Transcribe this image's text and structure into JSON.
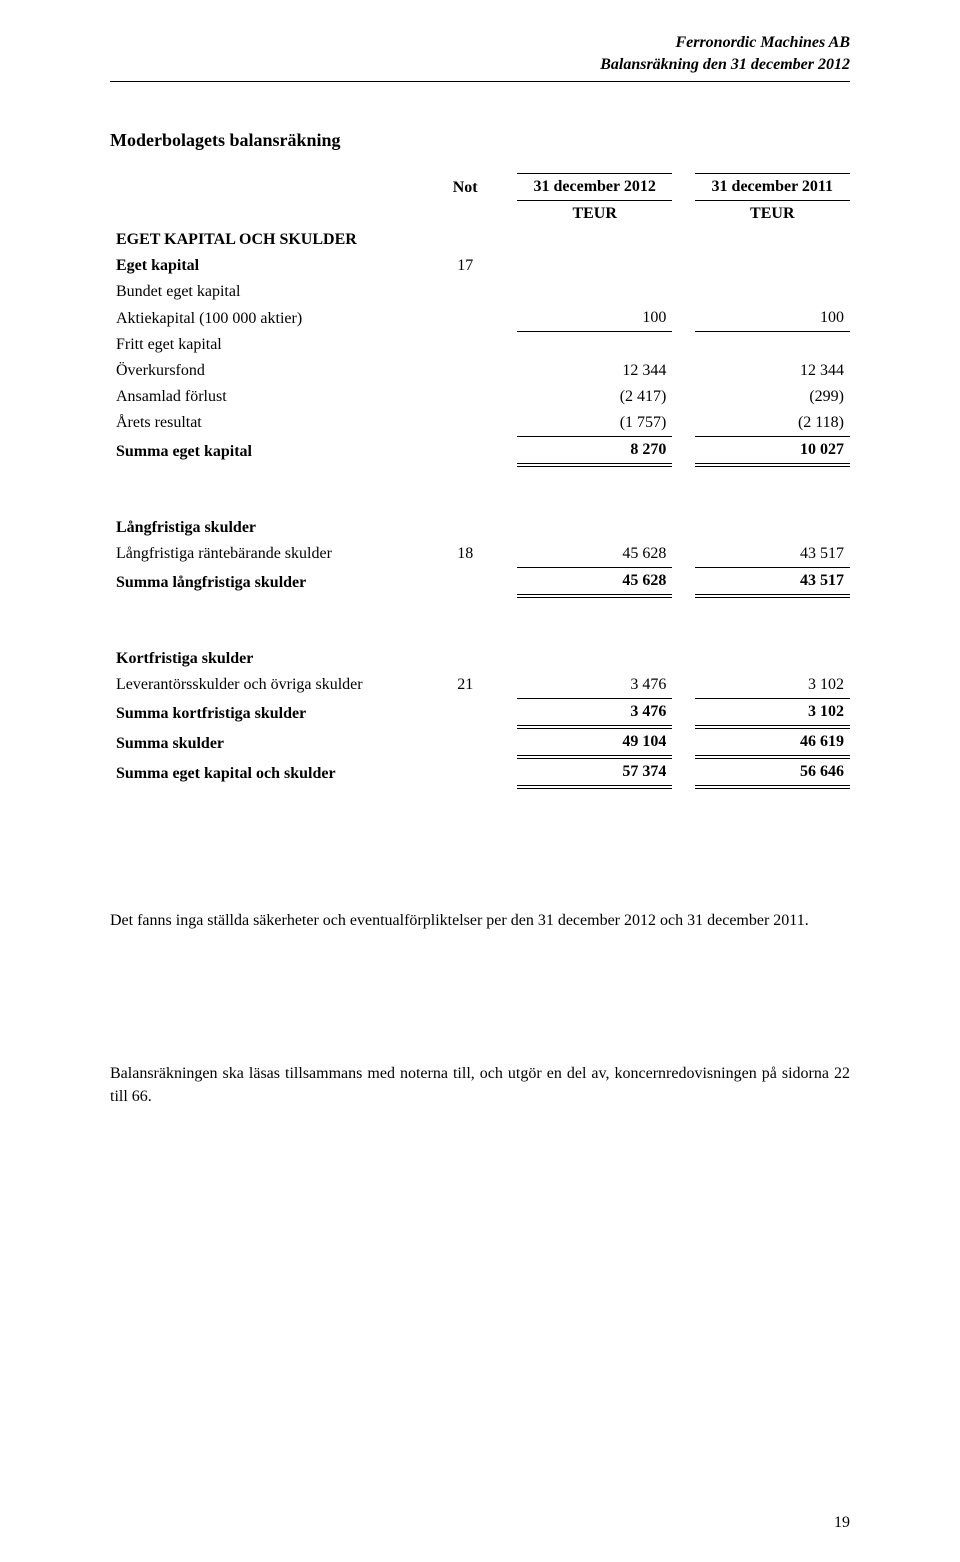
{
  "header": {
    "company": "Ferronordic Machines AB",
    "subtitle": "Balansräkning den 31 december 2012"
  },
  "section_title": "Moderbolagets balansräkning",
  "column_headers": {
    "note": "Not",
    "period1": "31 december 2012",
    "period2": "31 december 2011",
    "currency": "TEUR"
  },
  "groups": {
    "equity_section": "EGET KAPITAL OCH SKULDER",
    "eget_kapital": "Eget kapital",
    "bundet": "Bundet eget kapital",
    "langfristiga": "Långfristiga skulder",
    "kortfristiga": "Kortfristiga skulder"
  },
  "rows": {
    "aktiekapital": {
      "label": "Aktiekapital (100 000 aktier)",
      "v1": "100",
      "v2": "100"
    },
    "fritt": {
      "label": "Fritt eget kapital"
    },
    "overkursfond": {
      "label": "Överkursfond",
      "v1": "12 344",
      "v2": "12 344"
    },
    "ansamlad": {
      "label": "Ansamlad förlust",
      "v1": "(2 417)",
      "v2": "(299)"
    },
    "arets": {
      "label": "Årets resultat",
      "v1": "(1 757)",
      "v2": "(2 118)"
    },
    "summa_eget": {
      "label": "Summa eget kapital",
      "v1": "8 270",
      "v2": "10 027"
    },
    "lang_ranteb": {
      "label": "Långfristiga räntebärande skulder",
      "note": "18",
      "v1": "45 628",
      "v2": "43 517"
    },
    "summa_lang": {
      "label": "Summa långfristiga skulder",
      "v1": "45 628",
      "v2": "43 517"
    },
    "leverant": {
      "label": "Leverantörsskulder och övriga skulder",
      "note": "21",
      "v1": "3 476",
      "v2": "3 102"
    },
    "summa_kort": {
      "label": "Summa kortfristiga skulder",
      "v1": "3 476",
      "v2": "3 102"
    },
    "summa_skulder": {
      "label": "Summa skulder",
      "v1": "49 104",
      "v2": "46 619"
    },
    "summa_eget_sk": {
      "label": "Summa eget kapital och skulder",
      "v1": "57 374",
      "v2": "56 646"
    },
    "eget_note": "17"
  },
  "notes": {
    "line1": "Det fanns inga ställda säkerheter och eventualförpliktelser per den 31 december 2012 och 31 december 2011.",
    "line2": "Balansräkningen ska läsas tillsammans med noterna till, och utgör en del av, koncernredovisningen på sidorna 22 till 66."
  },
  "page_number": "19"
}
